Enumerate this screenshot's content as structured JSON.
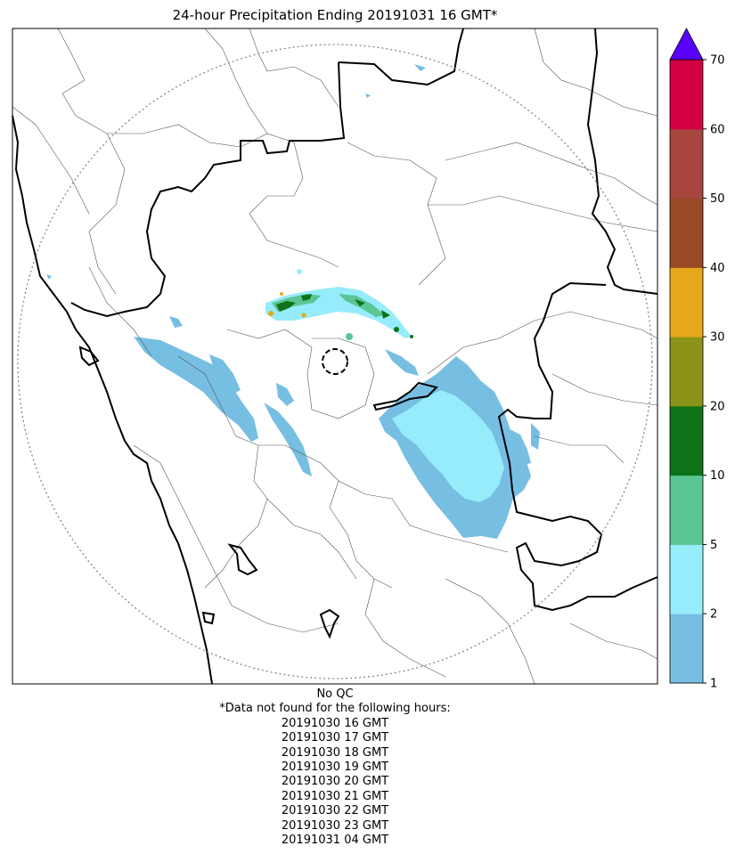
{
  "title": "24-hour Precipitation Ending 20191031 16 GMT*",
  "colorbar": {
    "ticks": [
      "1",
      "2",
      "5",
      "10",
      "20",
      "30",
      "40",
      "50",
      "60",
      "70"
    ],
    "bins": [
      {
        "from": 1,
        "to": 2,
        "color": "#77bee3"
      },
      {
        "from": 2,
        "to": 5,
        "color": "#96ecfb"
      },
      {
        "from": 5,
        "to": 10,
        "color": "#5bc595"
      },
      {
        "from": 10,
        "to": 20,
        "color": "#0e7318"
      },
      {
        "from": 20,
        "to": 30,
        "color": "#8b9418"
      },
      {
        "from": 30,
        "to": 40,
        "color": "#e6a81a"
      },
      {
        "from": 40,
        "to": 50,
        "color": "#9a4a25"
      },
      {
        "from": 50,
        "to": 60,
        "color": "#a6463e"
      },
      {
        "from": 60,
        "to": 70,
        "color": "#d30042"
      }
    ],
    "over_color": "#5a00ff"
  },
  "notes": {
    "qc": "No QC",
    "missing_header": "*Data not found for the following hours:",
    "missing_hours": [
      "20191030 16 GMT",
      "20191030 17 GMT",
      "20191030 18 GMT",
      "20191030 19 GMT",
      "20191030 20 GMT",
      "20191030 21 GMT",
      "20191030 22 GMT",
      "20191030 23 GMT",
      "20191031 04 GMT"
    ]
  }
}
